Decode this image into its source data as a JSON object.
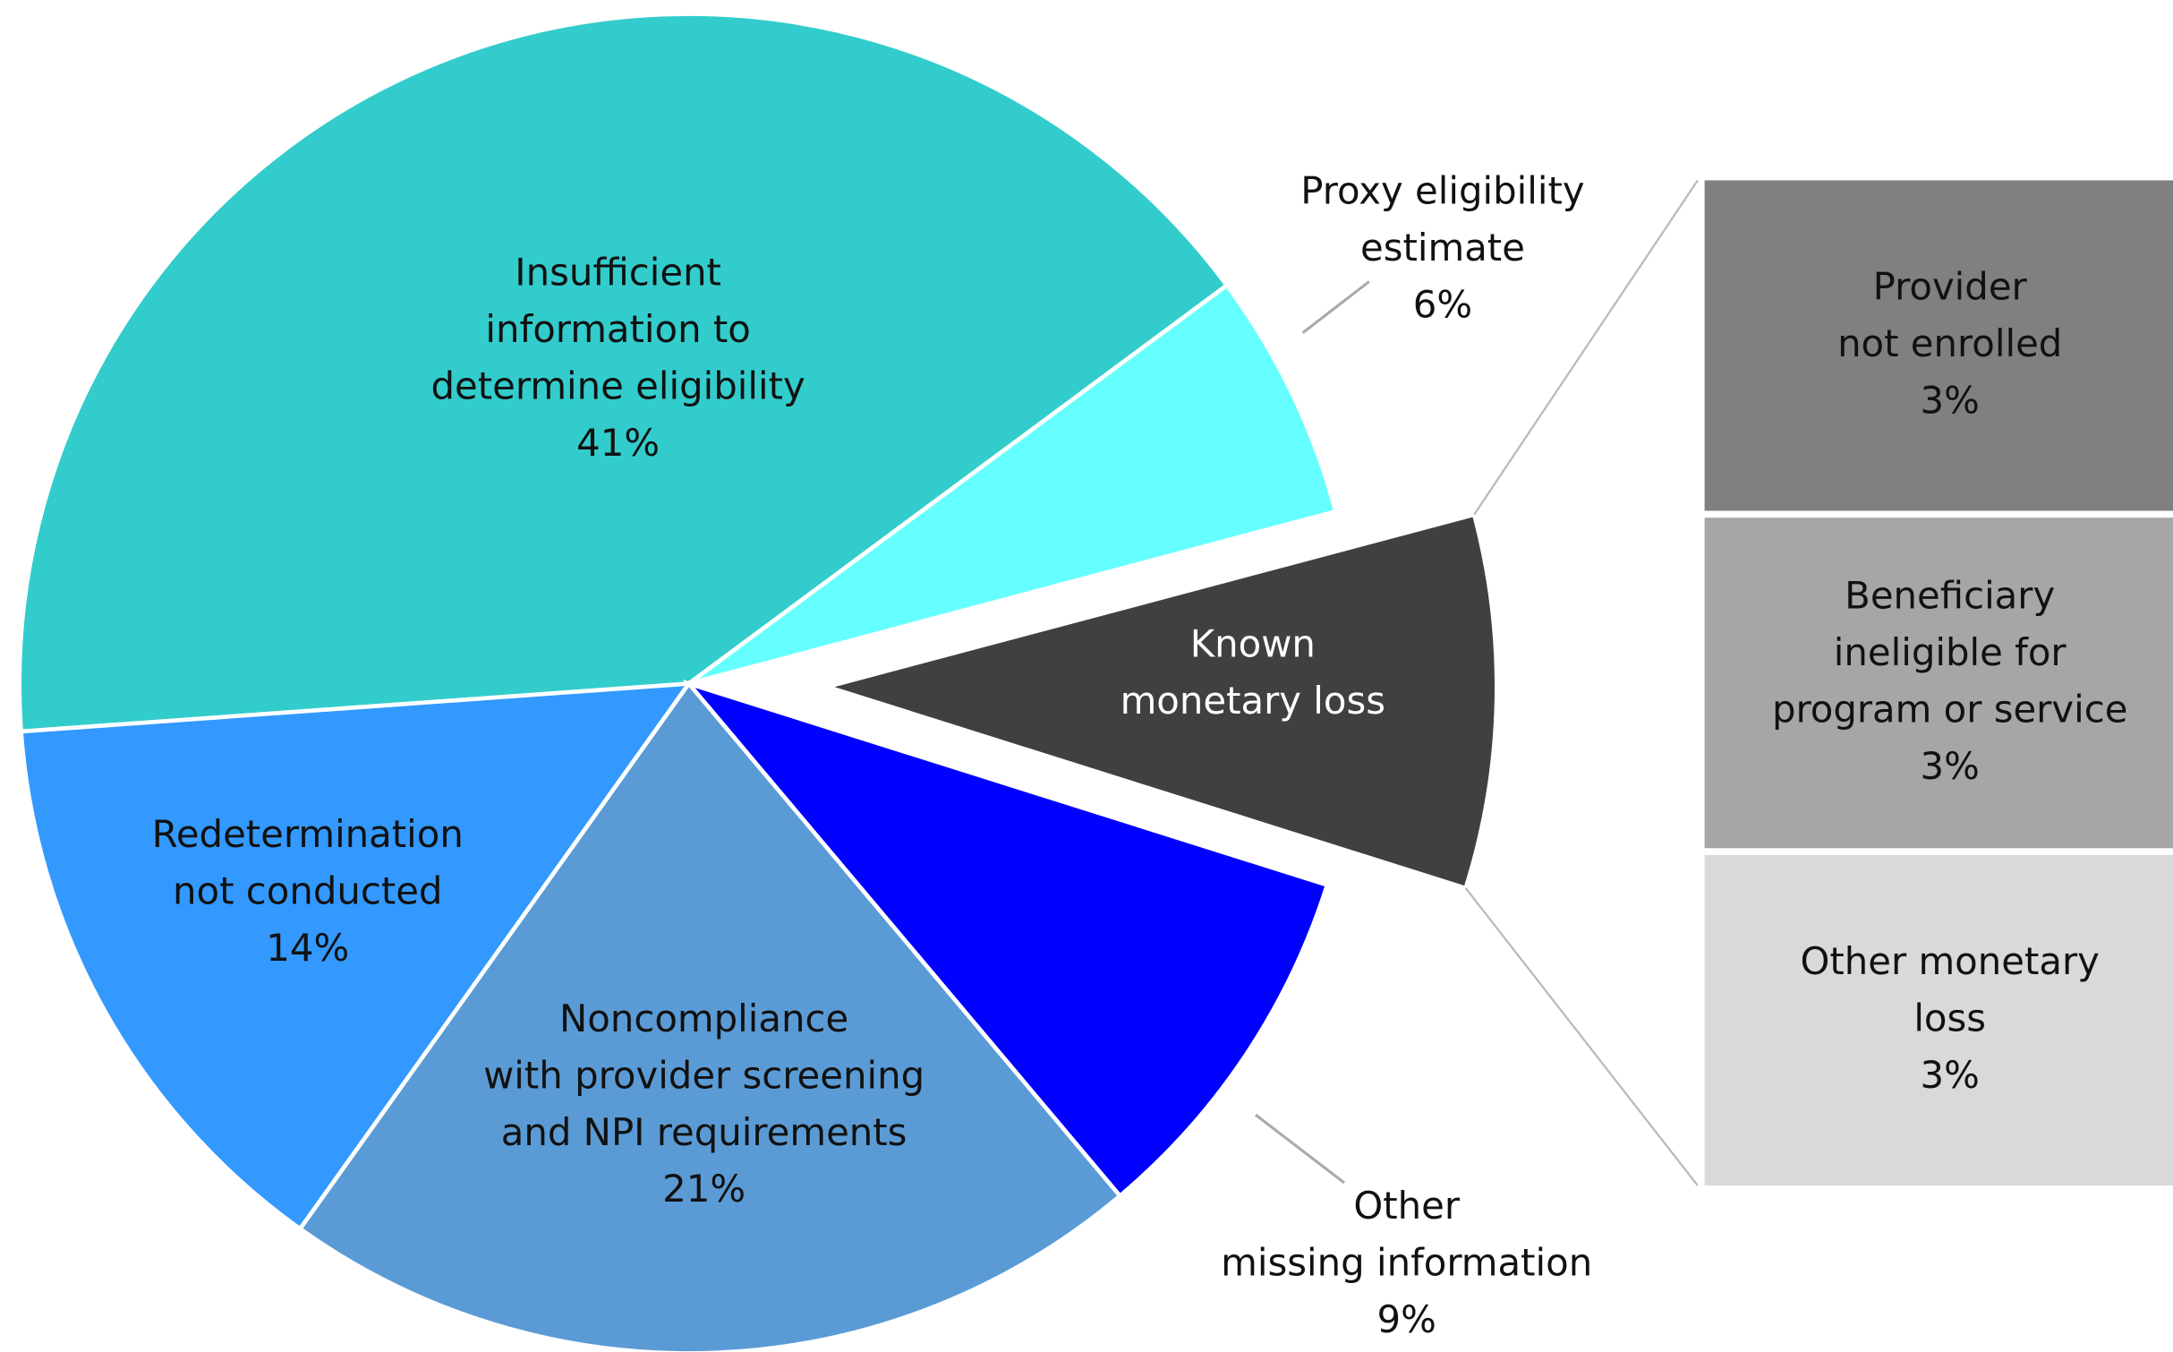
{
  "chart_data": {
    "type": "pie",
    "categories": [
      "Insufficient\ninformation to\ndetermine eligibility",
      "Proxy eligibility\nestimate",
      "Known\nmonetary loss",
      "Other\nmissing information",
      "Noncompliance\nwith provider screening\nand NPI requirements",
      "Redetermination\nnot conducted"
    ],
    "values": [
      41,
      6,
      9,
      9,
      21,
      14
    ],
    "value_labels": [
      "41%",
      "6%",
      null,
      "9%",
      "21%",
      "14%"
    ],
    "colors": [
      "#33cccc",
      "#66ffff",
      "#404040",
      "#0000ff",
      "#5b9bd5",
      "#3399ff"
    ],
    "exploded": 2,
    "breakdown": {
      "categories": [
        "Provider\nnot enrolled",
        "Beneficiary\nineligible for\nprogram or service",
        "Other monetary\nloss"
      ],
      "values": [
        3,
        3,
        3
      ],
      "value_labels": [
        "3%",
        "3%",
        "3%"
      ],
      "colors": [
        "#808080",
        "#a6a6a6",
        "#d9d9d9"
      ]
    }
  }
}
